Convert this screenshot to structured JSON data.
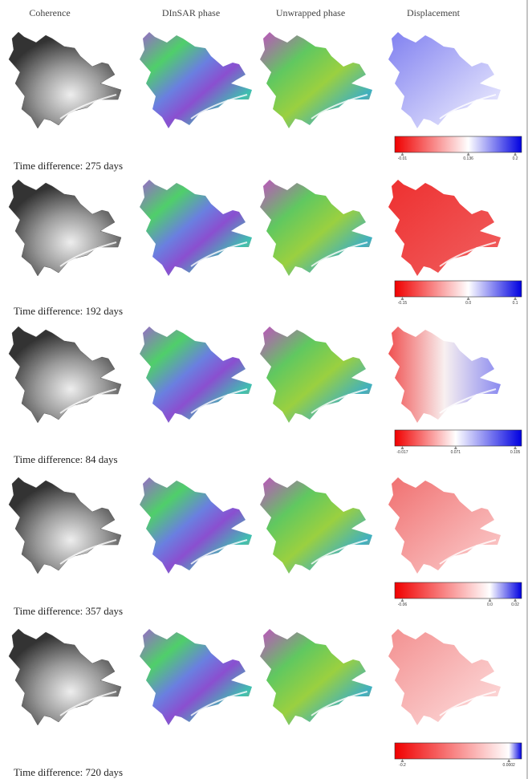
{
  "header": {
    "columns": [
      "Coherence",
      "DInSAR phase",
      "Unwrapped phase",
      "Displacement"
    ]
  },
  "rows": [
    {
      "colorbar_ticks": [
        "-0.01",
        "0.136",
        "0.2"
      ],
      "caption": "Time difference: 275 days"
    },
    {
      "colorbar_ticks": [
        "-0.15",
        "0.0",
        "0.1"
      ],
      "caption": "Time difference: 192 days"
    },
    {
      "colorbar_ticks": [
        "-0.017",
        "0.071",
        "0.105"
      ],
      "caption": "Time difference: 84 days"
    },
    {
      "colorbar_ticks": [
        "-0.06",
        "0.0",
        "0.02"
      ],
      "caption": "Time difference: 357 days"
    },
    {
      "colorbar_ticks": [
        "-0.2",
        "0.0002"
      ],
      "caption": "Time difference: 720 days"
    }
  ]
}
